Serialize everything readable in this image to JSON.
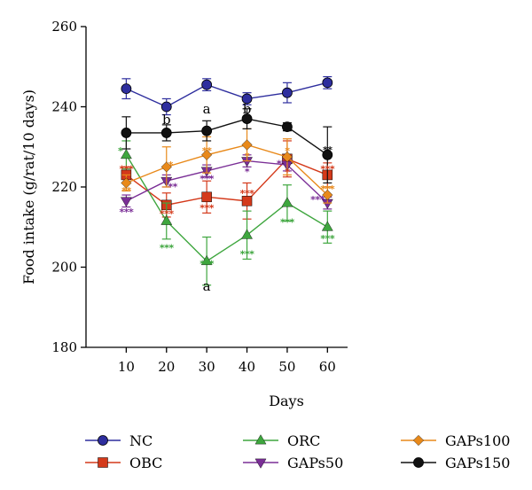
{
  "chart_data": {
    "type": "line",
    "title": "",
    "xlabel": "Days",
    "ylabel": "Food intake (g/rat/10 days)",
    "x": [
      10,
      20,
      30,
      40,
      50,
      60
    ],
    "xlim": [
      0,
      65
    ],
    "ylim": [
      180,
      260
    ],
    "yticks": [
      180,
      200,
      220,
      240,
      260
    ],
    "xticks": [
      10,
      20,
      30,
      40,
      50,
      60
    ],
    "legend_position": "bottom",
    "series": [
      {
        "name": "NC",
        "color": "#2e2e9e",
        "marker": "circle",
        "values": [
          244.5,
          240,
          245.5,
          242,
          243.5,
          246
        ],
        "errors": [
          2.5,
          2,
          1.5,
          1.5,
          2.5,
          1.5
        ]
      },
      {
        "name": "OBC",
        "color": "#d4391a",
        "marker": "square",
        "values": [
          223,
          215.5,
          217.5,
          216.5,
          227,
          223
        ],
        "errors": [
          2,
          3,
          4,
          4.5,
          4.5,
          3
        ]
      },
      {
        "name": "ORC",
        "color": "#3ea63e",
        "marker": "triangle-up",
        "values": [
          228,
          211.5,
          201.5,
          208,
          216,
          210
        ],
        "errors": [
          3.5,
          4.5,
          6,
          6,
          4.5,
          4
        ]
      },
      {
        "name": "GAPs50",
        "color": "#7a2e96",
        "marker": "triangle-down",
        "values": [
          216.5,
          221.5,
          224,
          226.5,
          225.5,
          216
        ],
        "errors": [
          1.5,
          1.5,
          1.5,
          1.5,
          1.5,
          1.5
        ]
      },
      {
        "name": "GAPs100",
        "color": "#e8891a",
        "marker": "diamond",
        "values": [
          221,
          225,
          228,
          230.5,
          227.5,
          218
        ],
        "errors": [
          2,
          5,
          4.5,
          4,
          4.5,
          2
        ]
      },
      {
        "name": "GAPs150",
        "color": "#111111",
        "marker": "circle",
        "values": [
          233.5,
          233.5,
          234,
          237,
          235,
          228
        ],
        "errors": [
          4,
          2,
          2.5,
          2.5,
          1,
          7
        ]
      }
    ],
    "annotations": [
      {
        "text": "b",
        "x": 20,
        "y": 236.8,
        "color": "#000000",
        "kind": "letter"
      },
      {
        "text": "a",
        "x": 30,
        "y": 239.5,
        "color": "#000000",
        "kind": "letter"
      },
      {
        "text": "b",
        "x": 40,
        "y": 239.4,
        "color": "#000000",
        "kind": "letter"
      },
      {
        "text": "a",
        "x": 30,
        "y": 195.2,
        "color": "#000000",
        "kind": "letter"
      },
      {
        "text": "*",
        "x": 8.5,
        "y": 229.5,
        "color": "#3ea63e",
        "kind": "star"
      },
      {
        "text": "***",
        "x": 10,
        "y": 225,
        "color": "#d4391a",
        "kind": "star"
      },
      {
        "text": "**",
        "x": 10,
        "y": 219.6,
        "color": "#e8891a",
        "kind": "star"
      },
      {
        "text": "***",
        "x": 10,
        "y": 214.3,
        "color": "#7a2e96",
        "kind": "star"
      },
      {
        "text": "*",
        "x": 21,
        "y": 226,
        "color": "#e8891a",
        "kind": "star"
      },
      {
        "text": "**",
        "x": 21.5,
        "y": 220.5,
        "color": "#7a2e96",
        "kind": "star"
      },
      {
        "text": "***",
        "x": 20,
        "y": 213.8,
        "color": "#d4391a",
        "kind": "star"
      },
      {
        "text": "***",
        "x": 20,
        "y": 205.3,
        "color": "#3ea63e",
        "kind": "star"
      },
      {
        "text": "**",
        "x": 30,
        "y": 229.5,
        "color": "#e8891a",
        "kind": "star"
      },
      {
        "text": "***",
        "x": 30,
        "y": 222.5,
        "color": "#7a2e96",
        "kind": "star"
      },
      {
        "text": "***",
        "x": 30,
        "y": 215.3,
        "color": "#d4391a",
        "kind": "star"
      },
      {
        "text": "***",
        "x": 30,
        "y": 201.3,
        "color": "#3ea63e",
        "kind": "star"
      },
      {
        "text": "*",
        "x": 40,
        "y": 228.2,
        "color": "#e8891a",
        "kind": "star"
      },
      {
        "text": "*",
        "x": 40,
        "y": 224.3,
        "color": "#7a2e96",
        "kind": "star"
      },
      {
        "text": "***",
        "x": 40,
        "y": 218.9,
        "color": "#d4391a",
        "kind": "star"
      },
      {
        "text": "***",
        "x": 40,
        "y": 203.8,
        "color": "#3ea63e",
        "kind": "star"
      },
      {
        "text": "*",
        "x": 50,
        "y": 229.5,
        "color": "#e8891a",
        "kind": "star"
      },
      {
        "text": "**",
        "x": 48.5,
        "y": 226.3,
        "color": "#7a2e96",
        "kind": "star"
      },
      {
        "text": "*",
        "x": 50,
        "y": 224.2,
        "color": "#d4391a",
        "kind": "star"
      },
      {
        "text": "***",
        "x": 50,
        "y": 211.7,
        "color": "#3ea63e",
        "kind": "star"
      },
      {
        "text": "**",
        "x": 60,
        "y": 229.7,
        "color": "#111111",
        "kind": "star"
      },
      {
        "text": "***",
        "x": 60,
        "y": 225,
        "color": "#d4391a",
        "kind": "star"
      },
      {
        "text": "***",
        "x": 60,
        "y": 220,
        "color": "#e8891a",
        "kind": "star"
      },
      {
        "text": "***",
        "x": 57.5,
        "y": 217.4,
        "color": "#7a2e96",
        "kind": "star"
      },
      {
        "text": "***",
        "x": 60,
        "y": 207.6,
        "color": "#3ea63e",
        "kind": "star"
      }
    ],
    "legend": {
      "columns": 3,
      "order": [
        "NC",
        "ORC",
        "GAPs100",
        "OBC",
        "GAPs50",
        "GAPs150"
      ]
    }
  }
}
